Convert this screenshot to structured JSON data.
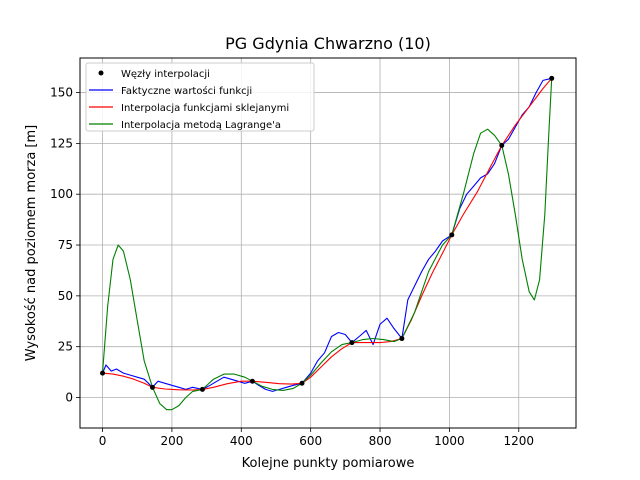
{
  "chart_data": {
    "type": "line",
    "title": "PG Gdynia Chwarzno (10)",
    "xlabel": "Kolejne punkty pomiarowe",
    "ylabel": "Wysokość nad poziomem morza [m]",
    "xlim": [
      -65,
      1365
    ],
    "ylim": [
      -15,
      167
    ],
    "xticks": [
      0,
      200,
      400,
      600,
      800,
      1000,
      1200
    ],
    "yticks": [
      0,
      25,
      50,
      75,
      100,
      125,
      150
    ],
    "grid": true,
    "legend_position": "top-left",
    "series": [
      {
        "name": "Węzły interpolacji",
        "kind": "points",
        "color": "#000000",
        "x": [
          0,
          144,
          288,
          432,
          575,
          719,
          863,
          1007,
          1151,
          1295
        ],
        "y": [
          12,
          5,
          4,
          8,
          7,
          27,
          29,
          80,
          124,
          157
        ]
      },
      {
        "name": "Faktyczne wartości funkcji",
        "kind": "line",
        "color": "#0000ff",
        "x": [
          0,
          10,
          25,
          40,
          60,
          80,
          100,
          120,
          144,
          160,
          180,
          200,
          220,
          240,
          260,
          288,
          310,
          330,
          350,
          370,
          390,
          410,
          432,
          450,
          470,
          490,
          510,
          530,
          550,
          575,
          600,
          620,
          640,
          660,
          680,
          700,
          719,
          740,
          760,
          780,
          800,
          820,
          840,
          863,
          880,
          900,
          920,
          940,
          960,
          980,
          1007,
          1030,
          1050,
          1070,
          1090,
          1110,
          1130,
          1151,
          1170,
          1190,
          1210,
          1230,
          1250,
          1270,
          1295
        ],
        "y": [
          12,
          16,
          13,
          14,
          12,
          11,
          10,
          9,
          5,
          8,
          7,
          6,
          5,
          4,
          5,
          4,
          6,
          8,
          10,
          9,
          8,
          7,
          8,
          6,
          4,
          3,
          4,
          5,
          6,
          7,
          12,
          18,
          22,
          30,
          32,
          31,
          27,
          30,
          33,
          26,
          36,
          39,
          34,
          29,
          48,
          55,
          62,
          68,
          72,
          77,
          80,
          93,
          100,
          104,
          108,
          110,
          115,
          124,
          127,
          133,
          139,
          143,
          150,
          156,
          157
        ]
      },
      {
        "name": "Interpolacja funkcjami sklejanymi",
        "kind": "line",
        "color": "#ff0000",
        "x": [
          0,
          30,
          60,
          90,
          120,
          144,
          180,
          220,
          260,
          288,
          320,
          360,
          400,
          432,
          470,
          510,
          545,
          575,
          600,
          630,
          660,
          690,
          719,
          760,
          800,
          830,
          863,
          890,
          920,
          950,
          980,
          1007,
          1040,
          1080,
          1120,
          1151,
          1190,
          1230,
          1270,
          1295
        ],
        "y": [
          12,
          11.5,
          10.5,
          9,
          7,
          5,
          4.2,
          3.8,
          3.7,
          4,
          5,
          6.8,
          8,
          8,
          7.5,
          6.8,
          6.6,
          7,
          10,
          15,
          20,
          24,
          27,
          27,
          27,
          27.5,
          29,
          38,
          50,
          61,
          71,
          80,
          90,
          101,
          114,
          124,
          134,
          143,
          152,
          157
        ]
      },
      {
        "name": "Interpolacja metodą Lagrange'a",
        "kind": "line",
        "color": "#008000",
        "x": [
          0,
          15,
          30,
          45,
          60,
          80,
          100,
          120,
          144,
          165,
          185,
          200,
          220,
          240,
          260,
          288,
          320,
          350,
          380,
          410,
          432,
          460,
          490,
          520,
          550,
          575,
          600,
          630,
          660,
          690,
          719,
          750,
          780,
          810,
          840,
          863,
          900,
          940,
          980,
          1007,
          1040,
          1070,
          1090,
          1110,
          1130,
          1151,
          1170,
          1190,
          1210,
          1230,
          1245,
          1260,
          1275,
          1285,
          1295
        ],
        "y": [
          12,
          45,
          68,
          75,
          72,
          58,
          38,
          18,
          5,
          -3,
          -6,
          -6,
          -4,
          0,
          3,
          4,
          9,
          11.5,
          11.5,
          10,
          8,
          5.5,
          4,
          3.5,
          4.5,
          7,
          11,
          17,
          22.5,
          26,
          27,
          28.5,
          29,
          28.5,
          27.5,
          29,
          42,
          62,
          75,
          80,
          100,
          120,
          130,
          132,
          129,
          124,
          110,
          90,
          68,
          52,
          48,
          58,
          90,
          125,
          157
        ]
      }
    ]
  }
}
